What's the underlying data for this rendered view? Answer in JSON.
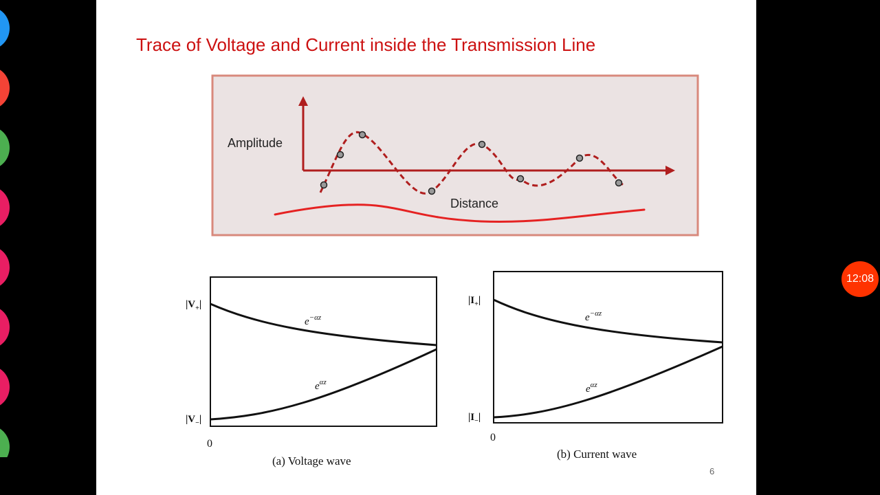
{
  "slide": {
    "title": "Trace of Voltage and Current inside the Transmission Line",
    "page_number": "6"
  },
  "overlay": {
    "clock_time": "12:08",
    "tool_colors": [
      "#2196f3",
      "#f44336",
      "#4caf50",
      "#e91e63",
      "#e91e63",
      "#e91e63",
      "#e91e63",
      "#4caf50"
    ]
  },
  "top_figure": {
    "y_label": "Amplitude",
    "x_label": "Distance"
  },
  "voltage_figure": {
    "top_label_main": "|V",
    "top_label_sub": "+",
    "bottom_label_main": "|V",
    "bottom_label_sub": "−",
    "decay_curve_base": "e",
    "decay_curve_exp": "−αz",
    "growth_curve_base": "e",
    "growth_curve_exp": "αz",
    "origin_label": "0",
    "caption": "(a) Voltage wave"
  },
  "current_figure": {
    "top_label_main": "|I",
    "top_label_sub": "+",
    "bottom_label_main": "|I",
    "bottom_label_sub": "−",
    "decay_curve_base": "e",
    "decay_curve_exp": "−αz",
    "growth_curve_base": "e",
    "growth_curve_exp": "αz",
    "origin_label": "0",
    "caption": "(b) Current wave"
  }
}
